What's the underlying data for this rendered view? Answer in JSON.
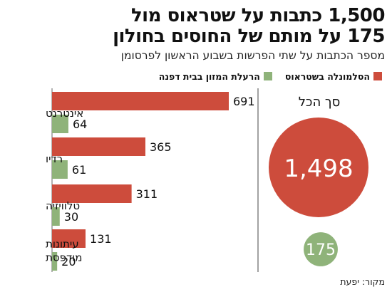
{
  "title_line1": "1,500 כתבות על שטראוס מול",
  "title_line2": "175 על מותם של החוסים בחולון",
  "subtitle": "מספר הכתבות על שתי הפרשות בשבוע הראשון לפרסומן",
  "source": "מקור: יפעת",
  "colors": {
    "red": "#cd4c3c",
    "green": "#8fb37a",
    "axis": "#666666",
    "divider": "#444444"
  },
  "chart_data": {
    "type": "bar",
    "orientation": "horizontal",
    "categories": [
      "אינטרנט",
      "רדיו",
      "טלוויזיה",
      "עיתונות מודפסת"
    ],
    "category_lines": [
      [
        "אינטרנט"
      ],
      [
        "רדיו"
      ],
      [
        "טלוויזיה"
      ],
      [
        "עיתונות",
        "מודפסת"
      ]
    ],
    "series": [
      {
        "name": "הסלמונלה בשטראוס",
        "color": "#cd4c3c",
        "values": [
          691,
          365,
          311,
          131
        ]
      },
      {
        "name": "הרעלת המזון בבית דפנה",
        "color": "#8fb37a",
        "values": [
          64,
          61,
          30,
          20
        ]
      }
    ],
    "xlim": [
      0,
      691
    ],
    "totals": {
      "label": "סך הכל",
      "values": [
        1498,
        175
      ],
      "value_labels": [
        "1,498",
        "175"
      ]
    }
  }
}
